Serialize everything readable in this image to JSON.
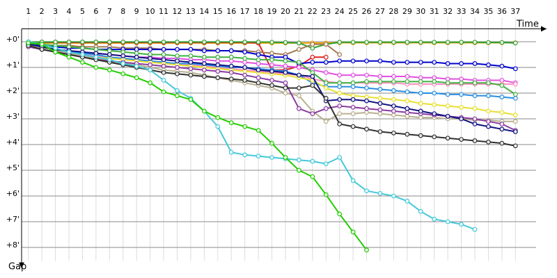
{
  "chart_data": {
    "type": "line",
    "x_label": "Time",
    "y_label": "Gap",
    "x": [
      1,
      2,
      3,
      4,
      5,
      6,
      7,
      8,
      9,
      10,
      11,
      12,
      13,
      14,
      15,
      16,
      17,
      18,
      19,
      20,
      21,
      22,
      23,
      24,
      25,
      26,
      27,
      28,
      29,
      30,
      31,
      32,
      33,
      34,
      35,
      36,
      37
    ],
    "xlim": [
      0.5,
      39.3
    ],
    "ylim": [
      -0.5,
      8.8
    ],
    "y_inverted": true,
    "yticks": [
      {
        "value": 0,
        "label": "+0'"
      },
      {
        "value": 1,
        "label": "+1'"
      },
      {
        "value": 2,
        "label": "+2'"
      },
      {
        "value": 3,
        "label": "+3'"
      },
      {
        "value": 4,
        "label": "+4'"
      },
      {
        "value": 5,
        "label": "+5'"
      },
      {
        "value": 6,
        "label": "+6'"
      },
      {
        "value": 7,
        "label": "+7'"
      },
      {
        "value": 8,
        "label": "+8'"
      }
    ],
    "grid": true,
    "series": [
      {
        "color": "#f0a000",
        "values": [
          0.05,
          0.05,
          0.05,
          0.05,
          0.05,
          0.05,
          0.05,
          0.05,
          0.05,
          0.05,
          0.05,
          0.05,
          0.05,
          0.05,
          0.05,
          0.05,
          0.05,
          0.05,
          0.05,
          0.05,
          0.05,
          0.05,
          0.05,
          0.04,
          0.04,
          0.04,
          0.04,
          0.04,
          0.04,
          0.04,
          0.04,
          0.04,
          0.04,
          0.04,
          0.04,
          0.04,
          0.04
        ]
      },
      {
        "color": "#e02020",
        "values": [
          0.02,
          0.02,
          0.03,
          0.03,
          0.03,
          0.03,
          0.03,
          0.03,
          0.03,
          0.03,
          0.03,
          0.03,
          0.03,
          0.03,
          0.03,
          0.03,
          0.03,
          0.05,
          1.1,
          1.1,
          0.95,
          0.6,
          0.6,
          null,
          null,
          null,
          null,
          null,
          null,
          null,
          null,
          null,
          null,
          null,
          null,
          null,
          null
        ]
      },
      {
        "color": "#30a030",
        "values": [
          0.01,
          0.01,
          0.01,
          0.01,
          0.01,
          0.01,
          0.01,
          0.01,
          0.01,
          0.01,
          0.01,
          0.01,
          0.01,
          0.01,
          0.01,
          0.01,
          0.01,
          0.01,
          0.02,
          0.03,
          0.05,
          0.25,
          0.1,
          0.02,
          0.02,
          0.02,
          0.02,
          0.02,
          0.02,
          0.02,
          0.02,
          0.02,
          0.02,
          0.02,
          0.03,
          0.03,
          0.05
        ]
      },
      {
        "color": "#a07850",
        "values": [
          0.05,
          0.1,
          0.15,
          0.15,
          0.2,
          0.2,
          0.2,
          0.25,
          0.25,
          0.25,
          0.3,
          0.3,
          0.3,
          0.3,
          0.35,
          0.35,
          0.35,
          0.4,
          0.45,
          0.5,
          0.3,
          0.1,
          0.1,
          0.5,
          null,
          null,
          null,
          null,
          null,
          null,
          null,
          null,
          null,
          null,
          null,
          null,
          null
        ]
      },
      {
        "color": "#0000cc",
        "values": [
          0.1,
          0.15,
          0.2,
          0.25,
          0.25,
          0.3,
          0.3,
          0.3,
          0.3,
          0.3,
          0.3,
          0.3,
          0.3,
          0.35,
          0.35,
          0.35,
          0.4,
          0.5,
          0.6,
          0.6,
          0.85,
          0.8,
          0.8,
          0.75,
          0.75,
          0.75,
          0.75,
          0.8,
          0.8,
          0.8,
          0.8,
          0.85,
          0.85,
          0.85,
          0.9,
          0.95,
          1.05
        ]
      },
      {
        "color": "#e050e0",
        "values": [
          0.1,
          0.2,
          0.3,
          0.35,
          0.4,
          0.45,
          0.5,
          0.55,
          0.6,
          0.6,
          0.65,
          0.65,
          0.7,
          0.7,
          0.75,
          0.75,
          0.8,
          0.85,
          0.9,
          0.95,
          1.0,
          1.1,
          1.2,
          1.3,
          1.3,
          1.3,
          1.35,
          1.35,
          1.35,
          1.4,
          1.4,
          1.45,
          1.45,
          1.5,
          1.5,
          1.5,
          1.6
        ]
      },
      {
        "color": "#ff90c0",
        "values": [
          0.1,
          0.2,
          0.3,
          0.4,
          0.5,
          0.55,
          0.6,
          0.65,
          0.7,
          0.75,
          0.8,
          0.85,
          0.9,
          0.95,
          1.0,
          1.05,
          1.1,
          1.15,
          1.2,
          1.25,
          1.3,
          1.45,
          1.55,
          1.6,
          1.6,
          1.6,
          1.6,
          1.6,
          1.65,
          1.65,
          1.65,
          1.65,
          1.65,
          1.65,
          1.65,
          1.65,
          1.65
        ]
      },
      {
        "color": "#40b040",
        "values": [
          0.05,
          0.1,
          0.15,
          0.2,
          0.25,
          0.3,
          0.35,
          0.4,
          0.45,
          0.5,
          0.5,
          0.55,
          0.55,
          0.6,
          0.6,
          0.6,
          0.65,
          0.7,
          0.7,
          0.75,
          0.8,
          1.2,
          1.6,
          1.6,
          1.6,
          1.55,
          1.55,
          1.55,
          1.55,
          1.55,
          1.55,
          1.6,
          1.6,
          1.6,
          1.6,
          1.7,
          2.05
        ]
      },
      {
        "color": "#2a8ee0",
        "values": [
          0.1,
          0.2,
          0.3,
          0.4,
          0.45,
          0.5,
          0.6,
          0.65,
          0.7,
          0.75,
          0.8,
          0.85,
          0.85,
          0.9,
          0.95,
          1.0,
          1.0,
          1.05,
          1.1,
          1.15,
          1.3,
          1.6,
          1.75,
          1.75,
          1.75,
          1.8,
          1.85,
          1.9,
          1.95,
          2.0,
          2.0,
          2.05,
          2.05,
          2.1,
          2.1,
          2.15,
          2.2
        ]
      },
      {
        "color": "#e8e030",
        "values": [
          0.15,
          0.25,
          0.35,
          0.45,
          0.55,
          0.6,
          0.65,
          0.7,
          0.75,
          0.8,
          0.85,
          0.9,
          0.95,
          1.0,
          1.05,
          1.1,
          1.15,
          1.2,
          1.25,
          1.3,
          1.4,
          1.5,
          1.8,
          2.0,
          2.1,
          2.15,
          2.2,
          2.25,
          2.3,
          2.4,
          2.45,
          2.5,
          2.55,
          2.6,
          2.7,
          2.75,
          2.85
        ]
      },
      {
        "color": "#b8b090",
        "values": [
          0.15,
          0.25,
          0.35,
          0.45,
          0.55,
          0.65,
          0.75,
          0.85,
          0.9,
          1.0,
          1.1,
          1.15,
          1.2,
          1.3,
          1.4,
          1.5,
          1.6,
          1.7,
          1.8,
          2.0,
          2.1,
          2.7,
          3.1,
          2.8,
          2.8,
          2.75,
          2.8,
          2.85,
          2.9,
          2.95,
          2.95,
          3.0,
          3.0,
          3.05,
          3.05,
          3.1,
          3.1
        ]
      },
      {
        "color": "#8a3aa0",
        "values": [
          0.2,
          0.3,
          0.4,
          0.5,
          0.6,
          0.7,
          0.75,
          0.8,
          0.85,
          0.9,
          0.95,
          1.0,
          1.05,
          1.1,
          1.15,
          1.2,
          1.3,
          1.4,
          1.5,
          1.6,
          2.6,
          2.8,
          2.6,
          2.5,
          2.55,
          2.6,
          2.65,
          2.7,
          2.75,
          2.8,
          2.85,
          2.9,
          2.95,
          3.0,
          3.1,
          3.2,
          3.45
        ]
      },
      {
        "color": "#101080",
        "values": [
          0.1,
          0.2,
          0.3,
          0.35,
          0.4,
          0.45,
          0.5,
          0.55,
          0.6,
          0.65,
          0.7,
          0.75,
          0.8,
          0.85,
          0.9,
          0.95,
          1.0,
          1.1,
          1.15,
          1.2,
          1.3,
          1.35,
          2.3,
          2.25,
          2.25,
          2.3,
          2.4,
          2.5,
          2.6,
          2.7,
          2.8,
          2.9,
          3.0,
          3.2,
          3.3,
          3.4,
          3.5
        ]
      },
      {
        "color": "#303030",
        "values": [
          0.15,
          0.3,
          0.4,
          0.5,
          0.6,
          0.7,
          0.8,
          0.9,
          1.0,
          1.1,
          1.2,
          1.25,
          1.3,
          1.35,
          1.4,
          1.45,
          1.5,
          1.6,
          1.7,
          1.8,
          1.8,
          1.7,
          2.2,
          3.2,
          3.3,
          3.4,
          3.5,
          3.55,
          3.6,
          3.65,
          3.7,
          3.75,
          3.8,
          3.85,
          3.9,
          3.95,
          4.05
        ]
      },
      {
        "color": "#44c8d8",
        "values": [
          0,
          0.1,
          0.25,
          0.4,
          0.5,
          0.6,
          0.7,
          0.85,
          0.95,
          1.1,
          1.5,
          1.9,
          2.2,
          2.7,
          3.3,
          4.3,
          4.4,
          4.45,
          4.5,
          4.55,
          4.6,
          4.65,
          4.75,
          4.5,
          5.4,
          5.8,
          5.9,
          6.0,
          6.2,
          6.6,
          6.9,
          7.0,
          7.1,
          7.3,
          null,
          null,
          null
        ]
      },
      {
        "color": "#22cc00",
        "values": [
          0.05,
          0.1,
          0.4,
          0.6,
          0.8,
          1.0,
          1.1,
          1.25,
          1.4,
          1.6,
          1.95,
          2.1,
          2.25,
          2.7,
          2.95,
          3.15,
          3.3,
          3.45,
          3.95,
          4.5,
          5.0,
          5.25,
          5.95,
          6.7,
          7.4,
          8.1,
          null,
          null,
          null,
          null,
          null,
          null,
          null,
          null,
          null,
          null,
          null
        ]
      }
    ]
  }
}
